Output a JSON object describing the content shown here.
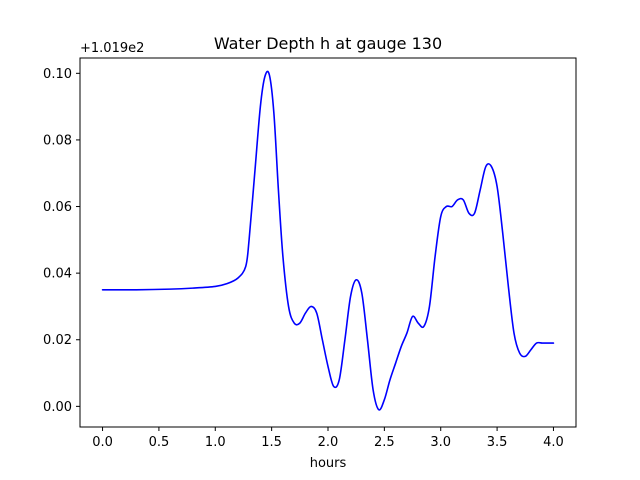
{
  "chart_data": {
    "type": "line",
    "title": "Water Depth h at gauge 130",
    "xlabel": "hours",
    "ylabel": "",
    "y_offset_label": "+1.019e2",
    "xlim": [
      -0.2,
      4.2
    ],
    "ylim": [
      -0.0062,
      0.1046
    ],
    "x_ticks": [
      0.0,
      0.5,
      1.0,
      1.5,
      2.0,
      2.5,
      3.0,
      3.5,
      4.0
    ],
    "x_tick_labels": [
      "0.0",
      "0.5",
      "1.0",
      "1.5",
      "2.0",
      "2.5",
      "3.0",
      "3.5",
      "4.0"
    ],
    "y_ticks": [
      0.0,
      0.02,
      0.04,
      0.06,
      0.08,
      0.1
    ],
    "y_tick_labels": [
      "0.00",
      "0.02",
      "0.04",
      "0.06",
      "0.08",
      "0.10"
    ],
    "grid": false,
    "colors": {
      "line": "#0000ff"
    },
    "series": [
      {
        "x": [
          0.0,
          0.3,
          0.6,
          0.8,
          1.0,
          1.1,
          1.2,
          1.27,
          1.3,
          1.35,
          1.4,
          1.44,
          1.48,
          1.52,
          1.56,
          1.6,
          1.65,
          1.7,
          1.75,
          1.8,
          1.85,
          1.9,
          1.95,
          2.0,
          2.05,
          2.1,
          2.15,
          2.2,
          2.25,
          2.3,
          2.35,
          2.4,
          2.45,
          2.5,
          2.55,
          2.6,
          2.65,
          2.7,
          2.75,
          2.8,
          2.85,
          2.9,
          2.95,
          3.0,
          3.05,
          3.1,
          3.15,
          3.2,
          3.25,
          3.3,
          3.35,
          3.4,
          3.45,
          3.5,
          3.55,
          3.6,
          3.65,
          3.7,
          3.75,
          3.8,
          3.85,
          3.9,
          3.95,
          4.0
        ],
        "y": [
          0.035,
          0.035,
          0.0352,
          0.0355,
          0.036,
          0.0368,
          0.0385,
          0.042,
          0.05,
          0.07,
          0.09,
          0.099,
          0.0995,
          0.088,
          0.065,
          0.045,
          0.03,
          0.025,
          0.025,
          0.028,
          0.03,
          0.028,
          0.02,
          0.012,
          0.006,
          0.008,
          0.02,
          0.033,
          0.038,
          0.034,
          0.02,
          0.005,
          -0.001,
          0.002,
          0.008,
          0.013,
          0.018,
          0.022,
          0.027,
          0.025,
          0.024,
          0.03,
          0.045,
          0.057,
          0.06,
          0.06,
          0.062,
          0.062,
          0.058,
          0.058,
          0.065,
          0.072,
          0.072,
          0.066,
          0.052,
          0.036,
          0.022,
          0.016,
          0.015,
          0.017,
          0.019,
          0.019,
          0.019,
          0.019
        ]
      }
    ]
  }
}
